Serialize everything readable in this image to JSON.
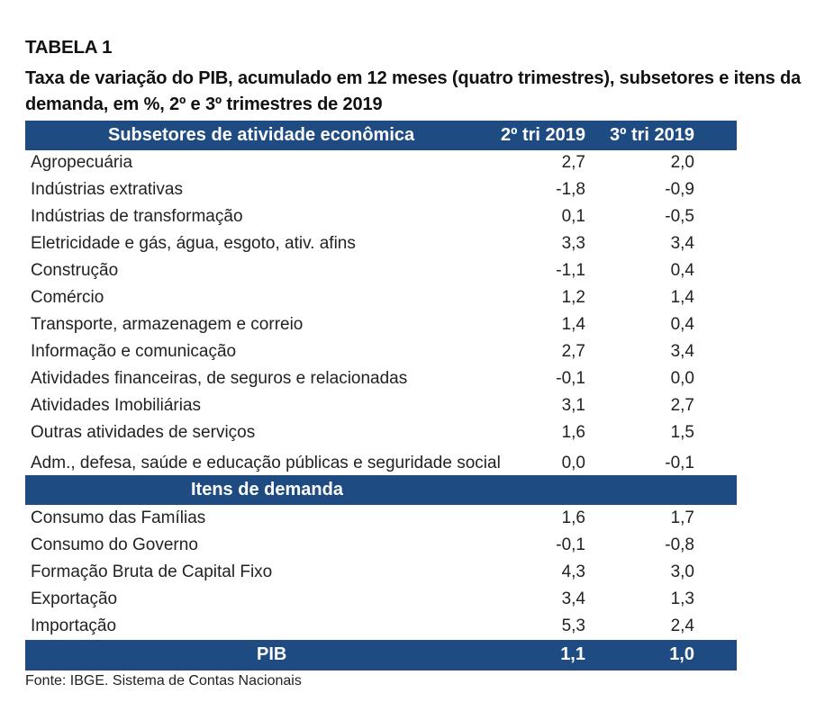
{
  "table": {
    "title": "TABELA 1",
    "subtitle": "Taxa de variação do PIB, acumulado em 12 meses (quatro trimestres), subsetores e itens da demanda, em %, 2º e 3º trimestres de 2019",
    "header": {
      "section": "Subsetores de atividade econômica",
      "col1": "2º tri 2019",
      "col2": "3º tri 2019"
    },
    "subsetores": [
      {
        "label": "Agropecuária",
        "v1": "2,7",
        "v2": "2,0"
      },
      {
        "label": "Indústrias extrativas",
        "v1": "-1,8",
        "v2": "-0,9"
      },
      {
        "label": "Indústrias de transformação",
        "v1": "0,1",
        "v2": "-0,5"
      },
      {
        "label": "Eletricidade e gás, água, esgoto, ativ. afins",
        "v1": "3,3",
        "v2": "3,4"
      },
      {
        "label": "Construção",
        "v1": "-1,1",
        "v2": "0,4"
      },
      {
        "label": "Comércio",
        "v1": "1,2",
        "v2": "1,4"
      },
      {
        "label": "Transporte, armazenagem e correio",
        "v1": "1,4",
        "v2": "0,4"
      },
      {
        "label": "Informação e comunicação",
        "v1": "2,7",
        "v2": "3,4"
      },
      {
        "label": "Atividades financeiras, de seguros e relacionadas",
        "v1": "-0,1",
        "v2": "0,0"
      },
      {
        "label": "Atividades Imobiliárias",
        "v1": "3,1",
        "v2": "2,7"
      },
      {
        "label": "Outras atividades de serviços",
        "v1": "1,6",
        "v2": "1,5"
      },
      {
        "label": "Adm., defesa, saúde e educação públicas e seguridade social",
        "v1": "0,0",
        "v2": "-0,1"
      }
    ],
    "demanda_header": "Itens de demanda",
    "demanda": [
      {
        "label": "Consumo das Famílias",
        "v1": "1,6",
        "v2": "1,7"
      },
      {
        "label": "Consumo do Governo",
        "v1": "-0,1",
        "v2": "-0,8"
      },
      {
        "label": "Formação Bruta de Capital Fixo",
        "v1": "4,3",
        "v2": "3,0"
      },
      {
        "label": "Exportação",
        "v1": "3,4",
        "v2": "1,3"
      },
      {
        "label": "Importação",
        "v1": "5,3",
        "v2": "2,4"
      }
    ],
    "total": {
      "label": "PIB",
      "v1": "1,1",
      "v2": "1,0"
    },
    "source": "Fonte: IBGE. Sistema de Contas Nacionais"
  },
  "colors": {
    "header_bg": "#1e4c82",
    "header_text": "#ffffff"
  }
}
